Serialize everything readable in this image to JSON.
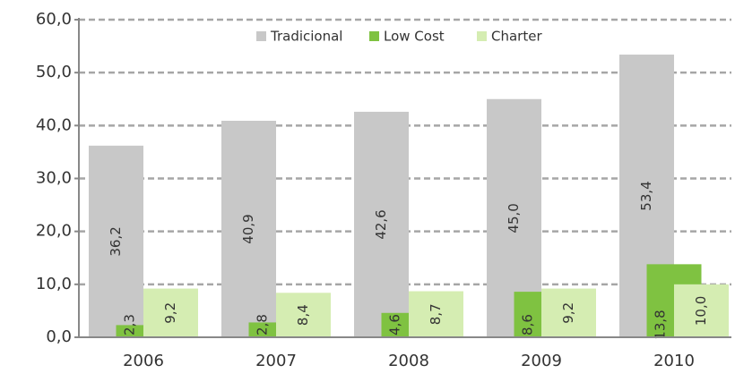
{
  "chart_data": {
    "type": "bar",
    "categories": [
      "2006",
      "2007",
      "2008",
      "2009",
      "2010"
    ],
    "series": [
      {
        "name": "Tradicional",
        "color": "#c8c8c8",
        "values": [
          36.2,
          40.9,
          42.6,
          45.0,
          53.4
        ],
        "value_labels": [
          "36,2",
          "40,9",
          "42,6",
          "45,0",
          "53,4"
        ]
      },
      {
        "name": "Low Cost",
        "color": "#7fc241",
        "values": [
          2.3,
          2.8,
          4.6,
          8.6,
          13.8
        ],
        "value_labels": [
          "2,3",
          "2,8",
          "4,6",
          "8,6",
          "13,8"
        ]
      },
      {
        "name": "Charter",
        "color": "#d5edb2",
        "values": [
          9.2,
          8.4,
          8.7,
          9.2,
          10.0
        ],
        "value_labels": [
          "9,2",
          "8,4",
          "8,7",
          "9,2",
          "10,0"
        ]
      }
    ],
    "ylim": [
      0,
      60
    ],
    "yticks": [
      {
        "value": 0,
        "label": "0,0"
      },
      {
        "value": 10,
        "label": "10,0"
      },
      {
        "value": 20,
        "label": "20,0"
      },
      {
        "value": 30,
        "label": "30,0"
      },
      {
        "value": 40,
        "label": "40,0"
      },
      {
        "value": 50,
        "label": "50,0"
      },
      {
        "value": 60,
        "label": "60,0"
      }
    ],
    "grid": true,
    "legend": "top"
  }
}
